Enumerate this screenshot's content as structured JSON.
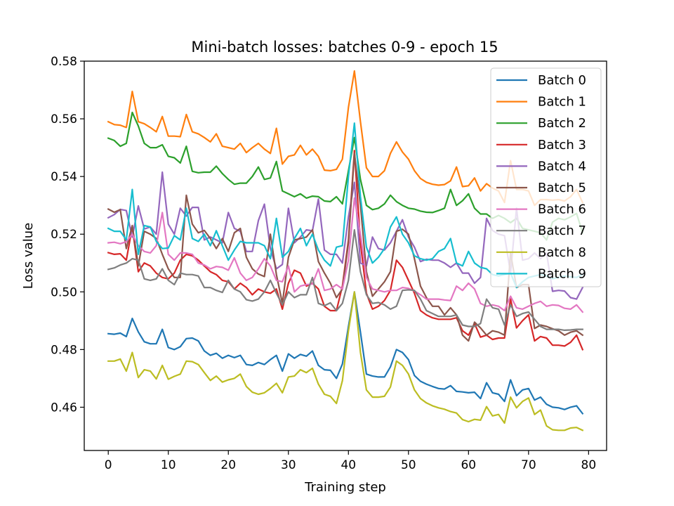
{
  "chart_data": {
    "type": "line",
    "title": "Mini-batch losses: batches 0-9 - epoch 15",
    "xlabel": "Training step",
    "ylabel": "Loss value",
    "xlim": [
      -4,
      83
    ],
    "ylim": [
      0.445,
      0.58
    ],
    "xticks": [
      0,
      10,
      20,
      30,
      40,
      50,
      60,
      70,
      80
    ],
    "xtick_labels": [
      "0",
      "10",
      "20",
      "30",
      "40",
      "50",
      "60",
      "70",
      "80"
    ],
    "yticks": [
      0.46,
      0.48,
      0.5,
      0.52,
      0.54,
      0.56,
      0.58
    ],
    "ytick_labels": [
      "0.46",
      "0.48",
      "0.50",
      "0.52",
      "0.54",
      "0.56",
      "0.58"
    ],
    "grid": false,
    "legend_position": "upper-right",
    "x": [
      0,
      1,
      2,
      3,
      4,
      5,
      6,
      7,
      8,
      9,
      10,
      11,
      12,
      13,
      14,
      15,
      16,
      17,
      18,
      19,
      20,
      21,
      22,
      23,
      24,
      25,
      26,
      27,
      28,
      29,
      30,
      31,
      32,
      33,
      34,
      35,
      36,
      37,
      38,
      39,
      40,
      41,
      42,
      43,
      44,
      45,
      46,
      47,
      48,
      49,
      50,
      51,
      52,
      53,
      54,
      55,
      56,
      57,
      58,
      59,
      60,
      61,
      62,
      63,
      64,
      65,
      66,
      67,
      68,
      69,
      70,
      71,
      72,
      73,
      74,
      75,
      76,
      77,
      78,
      79
    ],
    "series": [
      {
        "name": "Batch 0",
        "color": "#1f77b4",
        "values": [
          0.4855,
          0.4853,
          0.4857,
          0.4845,
          0.4908,
          0.4861,
          0.4827,
          0.482,
          0.482,
          0.487,
          0.4807,
          0.48,
          0.481,
          0.4838,
          0.484,
          0.483,
          0.4795,
          0.478,
          0.4787,
          0.477,
          0.478,
          0.4772,
          0.478,
          0.4748,
          0.4745,
          0.4755,
          0.4748,
          0.4765,
          0.478,
          0.4725,
          0.4785,
          0.477,
          0.4783,
          0.4777,
          0.4795,
          0.4745,
          0.473,
          0.4728,
          0.47,
          0.475,
          0.488,
          0.5,
          0.486,
          0.4715,
          0.4708,
          0.4705,
          0.4705,
          0.474,
          0.48,
          0.479,
          0.4765,
          0.471,
          0.469,
          0.468,
          0.4672,
          0.4665,
          0.4663,
          0.4675,
          0.4655,
          0.4653,
          0.465,
          0.4652,
          0.463,
          0.4685,
          0.465,
          0.4645,
          0.462,
          0.4695,
          0.464,
          0.466,
          0.4665,
          0.4625,
          0.4635,
          0.461,
          0.46,
          0.4598,
          0.4592,
          0.46,
          0.4605,
          0.4578
        ]
      },
      {
        "name": "Batch 1",
        "color": "#ff7f0e",
        "values": [
          0.559,
          0.558,
          0.5578,
          0.557,
          0.5695,
          0.559,
          0.5583,
          0.557,
          0.5555,
          0.5608,
          0.554,
          0.554,
          0.5538,
          0.5615,
          0.5555,
          0.5548,
          0.5535,
          0.552,
          0.5548,
          0.5505,
          0.55,
          0.5495,
          0.5515,
          0.5483,
          0.55,
          0.5515,
          0.5495,
          0.548,
          0.5567,
          0.5443,
          0.547,
          0.5475,
          0.5508,
          0.5475,
          0.5495,
          0.547,
          0.5422,
          0.542,
          0.5425,
          0.546,
          0.564,
          0.5766,
          0.559,
          0.543,
          0.54,
          0.54,
          0.542,
          0.548,
          0.552,
          0.5485,
          0.546,
          0.542,
          0.5393,
          0.538,
          0.5373,
          0.537,
          0.5372,
          0.5385,
          0.5433,
          0.5365,
          0.5368,
          0.5395,
          0.535,
          0.5375,
          0.536,
          0.535,
          0.531,
          0.5455,
          0.5355,
          0.5355,
          0.535,
          0.53,
          0.532,
          0.532,
          0.5318,
          0.532,
          0.5315,
          0.533,
          0.5355,
          0.531
        ]
      },
      {
        "name": "Batch 2",
        "color": "#2ca02c",
        "values": [
          0.5533,
          0.5525,
          0.5505,
          0.5515,
          0.5622,
          0.5575,
          0.5515,
          0.55,
          0.55,
          0.551,
          0.547,
          0.5465,
          0.5447,
          0.5505,
          0.5418,
          0.5413,
          0.5415,
          0.5415,
          0.5436,
          0.541,
          0.539,
          0.5373,
          0.5377,
          0.5377,
          0.54,
          0.5433,
          0.539,
          0.5395,
          0.5452,
          0.535,
          0.534,
          0.533,
          0.534,
          0.5325,
          0.5332,
          0.533,
          0.5315,
          0.5313,
          0.533,
          0.5305,
          0.542,
          0.5535,
          0.539,
          0.53,
          0.5285,
          0.529,
          0.5305,
          0.5335,
          0.5313,
          0.53,
          0.529,
          0.5287,
          0.528,
          0.5276,
          0.5275,
          0.5282,
          0.529,
          0.5355,
          0.53,
          0.5316,
          0.534,
          0.529,
          0.527,
          0.527,
          0.5255,
          0.5265,
          0.5255,
          0.524,
          0.5255,
          0.522,
          0.5215,
          0.521,
          0.5205,
          0.518,
          0.5242,
          0.5255,
          0.525,
          0.526,
          0.5272,
          0.5205
        ]
      },
      {
        "name": "Batch 3",
        "color": "#d62728",
        "values": [
          0.5136,
          0.513,
          0.5132,
          0.511,
          0.5225,
          0.507,
          0.51,
          0.509,
          0.5065,
          0.505,
          0.5045,
          0.5065,
          0.511,
          0.513,
          0.5125,
          0.511,
          0.509,
          0.507,
          0.506,
          0.504,
          0.5035,
          0.501,
          0.503,
          0.5015,
          0.499,
          0.501,
          0.5,
          0.4995,
          0.501,
          0.494,
          0.503,
          0.5075,
          0.5065,
          0.502,
          0.503,
          0.501,
          0.495,
          0.4935,
          0.4935,
          0.502,
          0.518,
          0.549,
          0.517,
          0.4995,
          0.494,
          0.495,
          0.497,
          0.5005,
          0.511,
          0.5085,
          0.504,
          0.4995,
          0.4935,
          0.492,
          0.491,
          0.4905,
          0.4905,
          0.4905,
          0.491,
          0.4865,
          0.485,
          0.489,
          0.4843,
          0.485,
          0.4835,
          0.484,
          0.484,
          0.4975,
          0.4875,
          0.49,
          0.492,
          0.483,
          0.4845,
          0.484,
          0.4815,
          0.4815,
          0.4812,
          0.4825,
          0.485,
          0.48
        ]
      },
      {
        "name": "Batch 4",
        "color": "#9467bd",
        "values": [
          0.5257,
          0.5268,
          0.5286,
          0.5282,
          0.519,
          0.5298,
          0.5218,
          0.5225,
          0.52,
          0.5415,
          0.5235,
          0.52,
          0.529,
          0.5263,
          0.5293,
          0.5293,
          0.518,
          0.519,
          0.518,
          0.517,
          0.5275,
          0.522,
          0.521,
          0.514,
          0.514,
          0.5247,
          0.5304,
          0.515,
          0.508,
          0.5095,
          0.529,
          0.517,
          0.519,
          0.5215,
          0.5212,
          0.5322,
          0.5145,
          0.513,
          0.513,
          0.51,
          0.526,
          0.538,
          0.51,
          0.509,
          0.519,
          0.515,
          0.5145,
          0.517,
          0.521,
          0.525,
          0.519,
          0.5155,
          0.5105,
          0.5113,
          0.511,
          0.511,
          0.51,
          0.5085,
          0.51,
          0.5065,
          0.5065,
          0.503,
          0.505,
          0.5255,
          0.5213,
          0.52,
          0.5195,
          0.5065,
          0.529,
          0.511,
          0.5115,
          0.5135,
          0.5115,
          0.5135,
          0.5002,
          0.5005,
          0.5003,
          0.498,
          0.4975,
          0.5015
        ]
      },
      {
        "name": "Batch 5",
        "color": "#8c564b",
        "values": [
          0.5287,
          0.5276,
          0.5285,
          0.515,
          0.523,
          0.509,
          0.521,
          0.52,
          0.5185,
          0.513,
          0.508,
          0.505,
          0.505,
          0.5335,
          0.5235,
          0.5205,
          0.5213,
          0.5185,
          0.515,
          0.5185,
          0.514,
          0.5205,
          0.522,
          0.512,
          0.508,
          0.5062,
          0.5053,
          0.52,
          0.506,
          0.496,
          0.512,
          0.518,
          0.5185,
          0.519,
          0.5215,
          0.5105,
          0.5065,
          0.503,
          0.498,
          0.501,
          0.517,
          0.548,
          0.53,
          0.507,
          0.4985,
          0.501,
          0.5035,
          0.507,
          0.521,
          0.5217,
          0.52,
          0.5115,
          0.502,
          0.498,
          0.495,
          0.495,
          0.492,
          0.4945,
          0.492,
          0.485,
          0.483,
          0.4895,
          0.4875,
          0.485,
          0.4865,
          0.486,
          0.485,
          0.5135,
          0.5015,
          0.5025,
          0.5025,
          0.4873,
          0.4885,
          0.488,
          0.4872,
          0.4865,
          0.485,
          0.486,
          0.4865,
          0.485
        ]
      },
      {
        "name": "Batch 6",
        "color": "#e377c2",
        "values": [
          0.517,
          0.5172,
          0.5167,
          0.5174,
          0.52,
          0.516,
          0.514,
          0.5135,
          0.516,
          0.5275,
          0.513,
          0.511,
          0.5135,
          0.5135,
          0.513,
          0.51,
          0.5093,
          0.508,
          0.5088,
          0.5085,
          0.5075,
          0.5118,
          0.5065,
          0.504,
          0.505,
          0.508,
          0.5115,
          0.509,
          0.504,
          0.5035,
          0.509,
          0.5,
          0.502,
          0.5025,
          0.5027,
          0.508,
          0.5005,
          0.501,
          0.5025,
          0.501,
          0.511,
          0.5325,
          0.52,
          0.505,
          0.501,
          0.5005,
          0.5,
          0.5005,
          0.5005,
          0.5015,
          0.5012,
          0.5003,
          0.499,
          0.4975,
          0.4975,
          0.4975,
          0.4972,
          0.497,
          0.502,
          0.5005,
          0.503,
          0.501,
          0.496,
          0.495,
          0.4955,
          0.495,
          0.4935,
          0.4985,
          0.4945,
          0.494,
          0.495,
          0.496,
          0.4967,
          0.495,
          0.4955,
          0.4953,
          0.4943,
          0.494,
          0.4955,
          0.493
        ]
      },
      {
        "name": "Batch 7",
        "color": "#7f7f7f",
        "values": [
          0.5078,
          0.5083,
          0.5093,
          0.51,
          0.5115,
          0.511,
          0.5045,
          0.504,
          0.5045,
          0.508,
          0.504,
          0.5025,
          0.5065,
          0.506,
          0.506,
          0.5055,
          0.5015,
          0.5015,
          0.5005,
          0.4998,
          0.504,
          0.501,
          0.5,
          0.4973,
          0.4968,
          0.4975,
          0.5,
          0.504,
          0.4995,
          0.4955,
          0.5,
          0.498,
          0.499,
          0.499,
          0.505,
          0.496,
          0.4952,
          0.4962,
          0.4935,
          0.496,
          0.504,
          0.5215,
          0.507,
          0.499,
          0.496,
          0.4963,
          0.4955,
          0.494,
          0.495,
          0.5005,
          0.5007,
          0.5005,
          0.4975,
          0.4935,
          0.4925,
          0.4915,
          0.4915,
          0.4915,
          0.492,
          0.4885,
          0.488,
          0.488,
          0.489,
          0.4975,
          0.4945,
          0.494,
          0.4885,
          0.4955,
          0.4915,
          0.4925,
          0.493,
          0.4905,
          0.488,
          0.487,
          0.487,
          0.487,
          0.4867,
          0.4868,
          0.487,
          0.487
        ]
      },
      {
        "name": "Batch 8",
        "color": "#bcbd22",
        "values": [
          0.476,
          0.476,
          0.4767,
          0.4725,
          0.479,
          0.4703,
          0.473,
          0.4725,
          0.4698,
          0.4745,
          0.4697,
          0.4707,
          0.4715,
          0.476,
          0.4758,
          0.4748,
          0.472,
          0.4693,
          0.4708,
          0.4687,
          0.4695,
          0.47,
          0.4715,
          0.4672,
          0.4652,
          0.4645,
          0.465,
          0.4665,
          0.4683,
          0.465,
          0.4705,
          0.4708,
          0.473,
          0.472,
          0.4735,
          0.468,
          0.4645,
          0.4638,
          0.4613,
          0.4692,
          0.4865,
          0.5,
          0.479,
          0.466,
          0.4635,
          0.4635,
          0.4638,
          0.467,
          0.476,
          0.4745,
          0.4715,
          0.466,
          0.463,
          0.4615,
          0.4605,
          0.4598,
          0.4593,
          0.4585,
          0.458,
          0.4557,
          0.455,
          0.4558,
          0.4555,
          0.4602,
          0.457,
          0.4575,
          0.4545,
          0.4635,
          0.4598,
          0.462,
          0.4632,
          0.4575,
          0.459,
          0.4535,
          0.4522,
          0.452,
          0.452,
          0.4528,
          0.453,
          0.452
        ]
      },
      {
        "name": "Batch 9",
        "color": "#17becf",
        "values": [
          0.522,
          0.521,
          0.521,
          0.518,
          0.5355,
          0.513,
          0.523,
          0.5225,
          0.5175,
          0.515,
          0.5152,
          0.5195,
          0.518,
          0.529,
          0.5185,
          0.5175,
          0.52,
          0.516,
          0.5212,
          0.516,
          0.511,
          0.5145,
          0.5175,
          0.517,
          0.517,
          0.517,
          0.516,
          0.5115,
          0.5255,
          0.512,
          0.514,
          0.5185,
          0.522,
          0.516,
          0.52,
          0.5145,
          0.511,
          0.509,
          0.5155,
          0.516,
          0.54,
          0.5585,
          0.533,
          0.5155,
          0.51,
          0.512,
          0.515,
          0.5225,
          0.526,
          0.52,
          0.517,
          0.5125,
          0.5115,
          0.511,
          0.5115,
          0.514,
          0.515,
          0.5185,
          0.51,
          0.509,
          0.514,
          0.51,
          0.5085,
          0.508,
          0.506,
          0.5055,
          0.506,
          0.5065,
          0.5015,
          0.5035,
          0.505,
          0.5055,
          0.506,
          0.5055,
          0.5045,
          0.505,
          0.5055,
          0.5052,
          0.505,
          0.506
        ]
      }
    ]
  }
}
